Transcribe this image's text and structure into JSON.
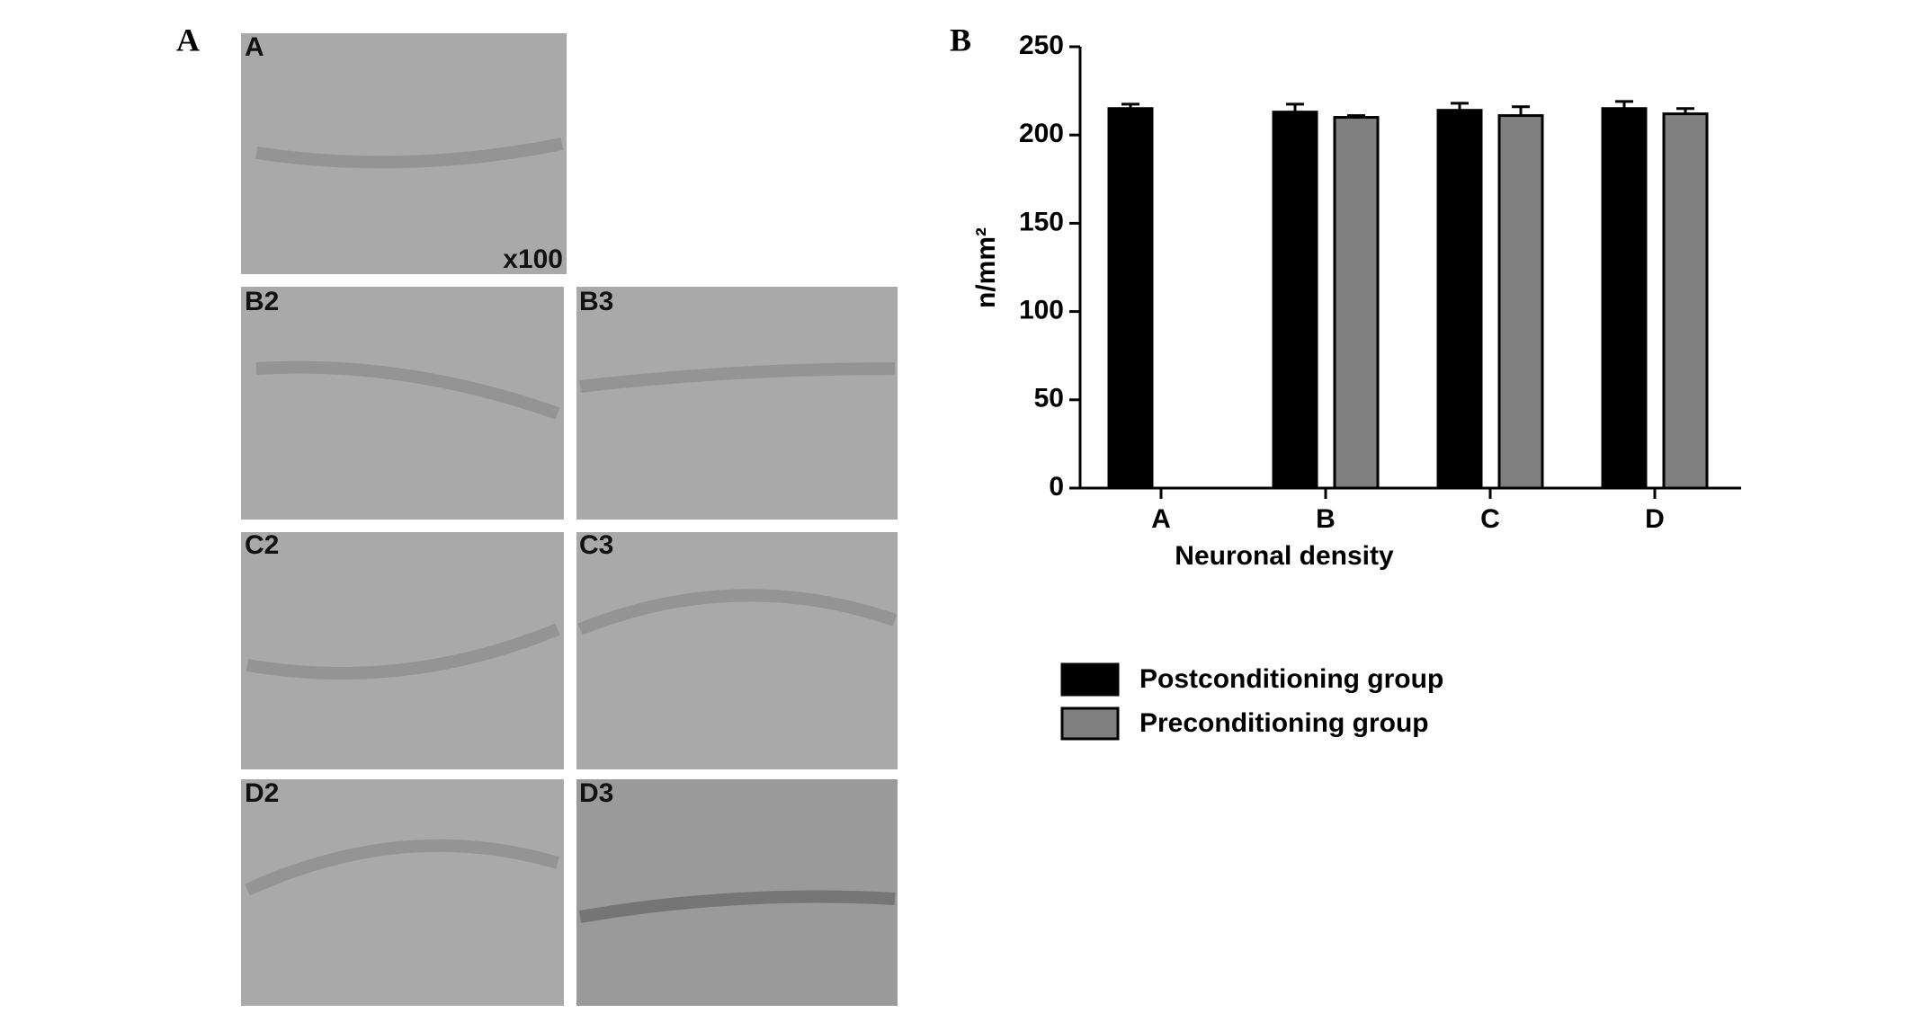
{
  "figure": {
    "panel_a_label": "A",
    "panel_b_label": "B",
    "micrographs": [
      "A",
      "B2",
      "B3",
      "C2",
      "C3",
      "D2",
      "D3"
    ],
    "magnification": "x100"
  },
  "chart_data": {
    "type": "bar",
    "x_label": "Neuronal density",
    "y_label": "n/mm²",
    "categories": [
      "A",
      "B",
      "C",
      "D"
    ],
    "series": [
      {
        "name": "Postconditioning group",
        "color": "#000000",
        "values": [
          215,
          213,
          214,
          215
        ],
        "errors": [
          2.5,
          4.5,
          4,
          4
        ]
      },
      {
        "name": "Preconditioning group",
        "color": "#808080",
        "values": [
          null,
          210,
          211,
          212
        ],
        "errors": [
          null,
          1,
          5,
          3
        ]
      }
    ],
    "ylim": [
      0,
      250
    ],
    "yticks": [
      0,
      50,
      100,
      150,
      200,
      250
    ]
  }
}
